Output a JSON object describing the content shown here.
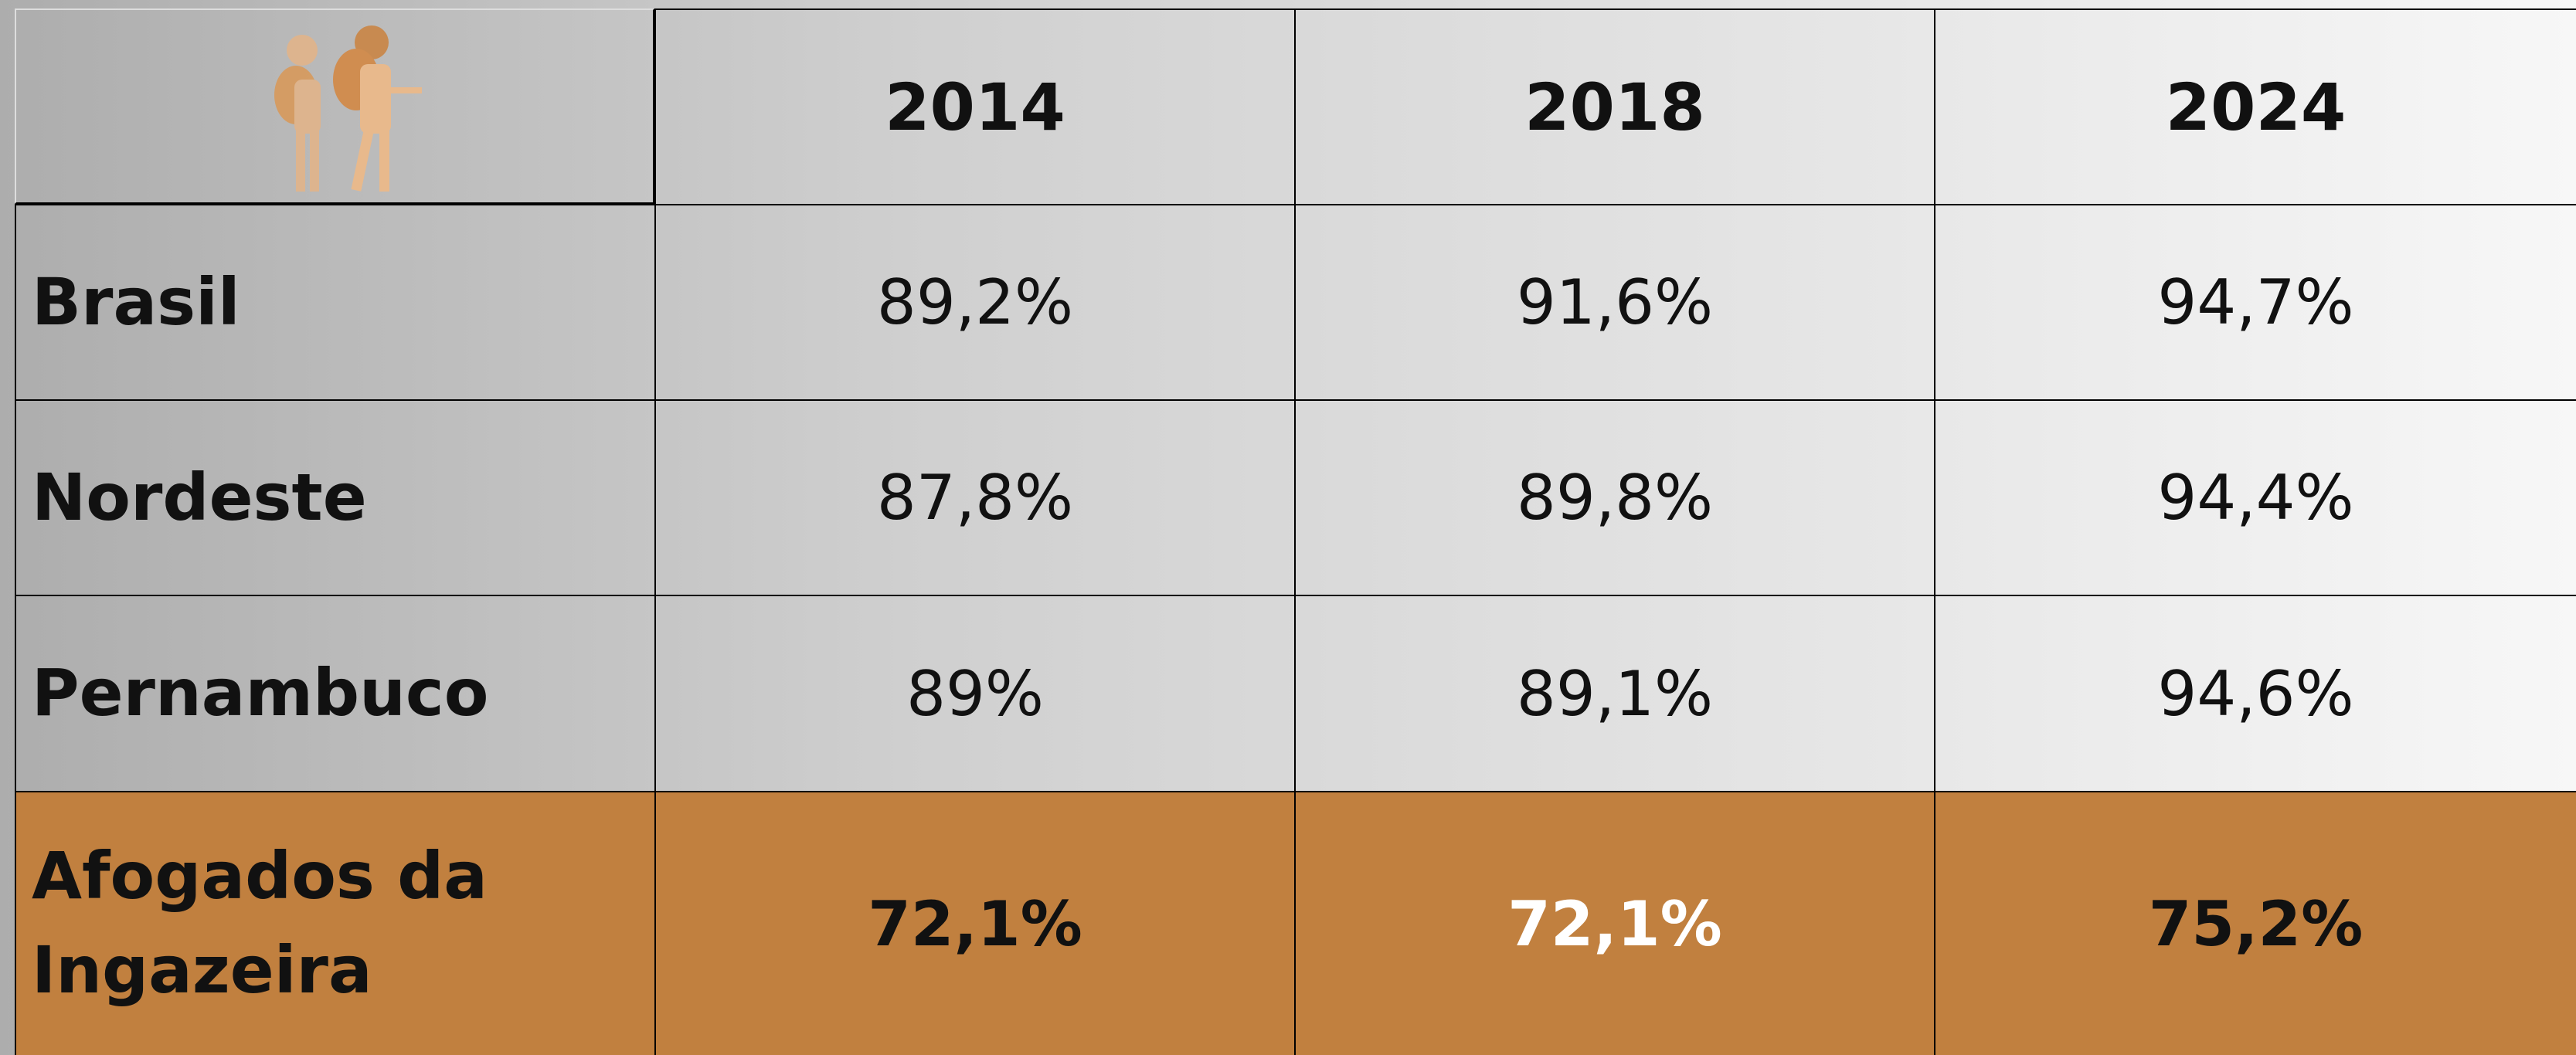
{
  "table": {
    "header": [
      "2014",
      "2018",
      "2024"
    ],
    "rows": [
      {
        "label": "Brasil",
        "values": [
          "89,2%",
          "91,6%",
          "94,7%"
        ]
      },
      {
        "label": "Nordeste",
        "values": [
          "87,8%",
          "89,8%",
          "94,4%"
        ]
      },
      {
        "label": "Pernambuco",
        "values": [
          "89%",
          "89,1%",
          "94,6%"
        ]
      },
      {
        "label": "Afogados da Ingazeira",
        "values": [
          "72,1%",
          "72,1%",
          "75,2%"
        ]
      }
    ]
  }
}
